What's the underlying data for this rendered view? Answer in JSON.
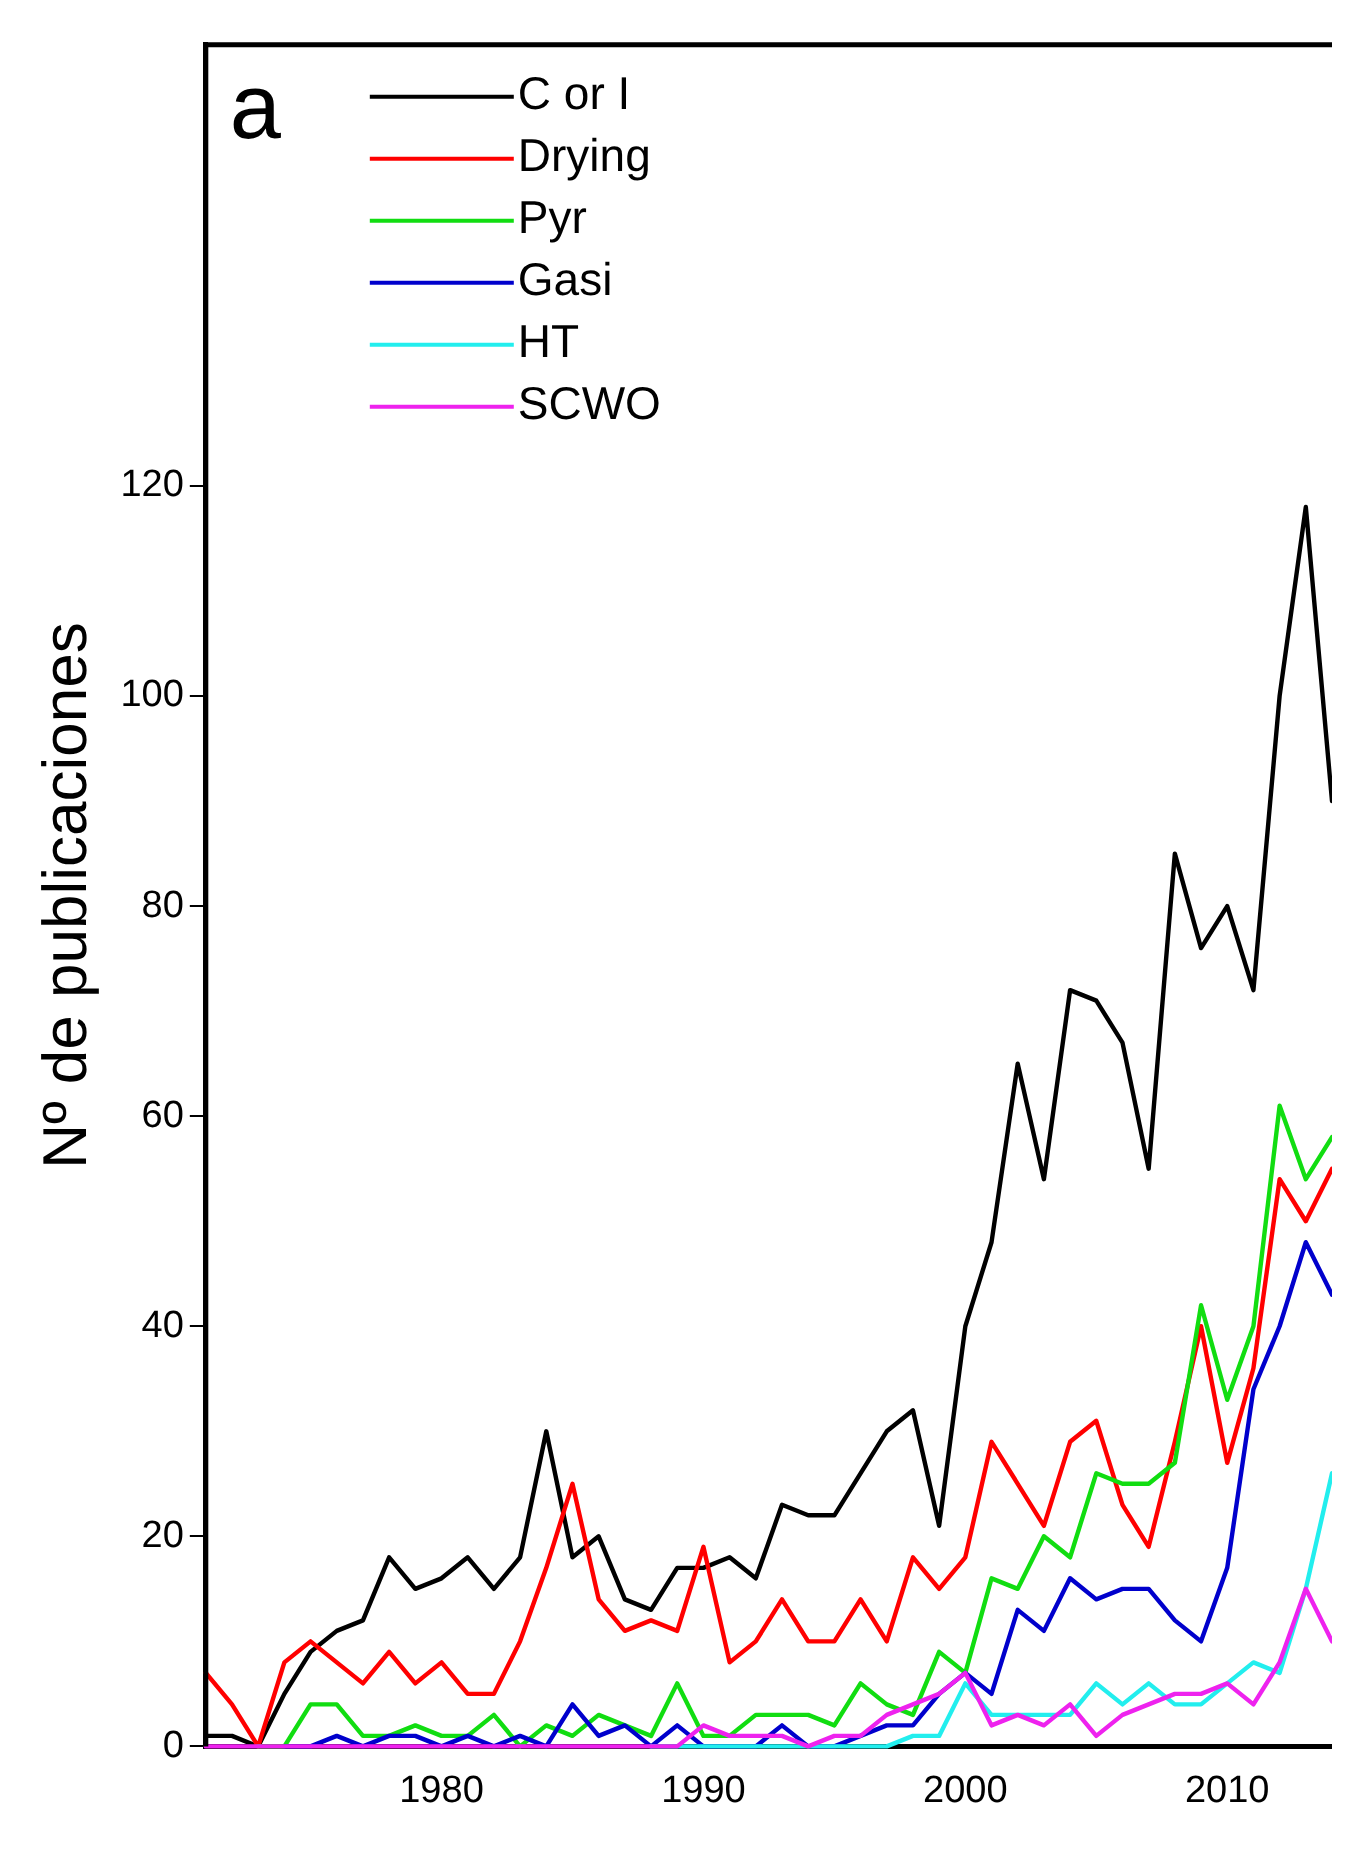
{
  "chart_data": {
    "type": "line",
    "ylabel": "Nº de publicaciones",
    "annotations": [
      "a"
    ],
    "x": [
      1971,
      1972,
      1973,
      1974,
      1975,
      1976,
      1977,
      1978,
      1979,
      1980,
      1981,
      1982,
      1983,
      1984,
      1985,
      1986,
      1987,
      1988,
      1989,
      1990,
      1991,
      1992,
      1993,
      1994,
      1995,
      1996,
      1997,
      1998,
      1999,
      2000,
      2001,
      2002,
      2003,
      2004,
      2005,
      2006,
      2007,
      2008,
      2009,
      2010,
      2011,
      2012,
      2013,
      2014
    ],
    "series": [
      {
        "name": "C or I",
        "color": "#000000",
        "values": [
          1,
          1,
          0,
          5,
          9,
          11,
          12,
          18,
          15,
          16,
          18,
          15,
          18,
          30,
          18,
          20,
          14,
          13,
          17,
          17,
          18,
          16,
          23,
          22,
          22,
          26,
          30,
          32,
          21,
          40,
          48,
          65,
          54,
          72,
          71,
          67,
          55,
          85,
          76,
          80,
          72,
          100,
          118,
          90
        ]
      },
      {
        "name": "Drying",
        "color": "#ff0000",
        "values": [
          7,
          4,
          0,
          8,
          10,
          8,
          6,
          9,
          6,
          8,
          5,
          5,
          10,
          17,
          25,
          14,
          11,
          12,
          11,
          19,
          8,
          10,
          14,
          10,
          10,
          14,
          10,
          18,
          15,
          18,
          29,
          25,
          21,
          29,
          31,
          23,
          19,
          29,
          40,
          27,
          36,
          54,
          50,
          55
        ]
      },
      {
        "name": "Pyr",
        "color": "#11dd11",
        "values": [
          null,
          null,
          0,
          0,
          4,
          4,
          1,
          1,
          2,
          1,
          1,
          3,
          0,
          2,
          1,
          3,
          2,
          1,
          6,
          1,
          1,
          3,
          3,
          3,
          2,
          6,
          4,
          3,
          9,
          7,
          16,
          15,
          20,
          18,
          26,
          25,
          25,
          27,
          42,
          33,
          40,
          61,
          54,
          58
        ]
      },
      {
        "name": "Gasi",
        "color": "#0000cc",
        "values": [
          null,
          null,
          null,
          0,
          0,
          1,
          0,
          1,
          1,
          0,
          1,
          0,
          1,
          0,
          4,
          1,
          2,
          0,
          2,
          0,
          0,
          0,
          2,
          0,
          0,
          1,
          2,
          2,
          5,
          7,
          5,
          13,
          11,
          16,
          14,
          15,
          15,
          12,
          10,
          17,
          34,
          40,
          48,
          43
        ]
      },
      {
        "name": "HT",
        "color": "#22eeee",
        "values": [
          null,
          null,
          null,
          null,
          null,
          null,
          null,
          null,
          null,
          null,
          null,
          null,
          null,
          null,
          null,
          null,
          null,
          0,
          0,
          0,
          0,
          0,
          0,
          0,
          0,
          0,
          0,
          1,
          1,
          6,
          3,
          3,
          3,
          3,
          6,
          4,
          6,
          4,
          4,
          6,
          8,
          7,
          15,
          26
        ]
      },
      {
        "name": "SCWO",
        "color": "#ee22ee",
        "values": [
          0,
          0,
          0,
          0,
          0,
          0,
          0,
          0,
          0,
          0,
          0,
          0,
          0,
          0,
          0,
          0,
          0,
          0,
          0,
          2,
          1,
          1,
          1,
          0,
          1,
          1,
          3,
          4,
          5,
          7,
          2,
          3,
          2,
          4,
          1,
          3,
          4,
          5,
          5,
          6,
          4,
          8,
          15,
          10
        ]
      }
    ],
    "xlim": [
      1971,
      2014
    ],
    "xticks": [
      1980,
      1990,
      2000,
      2010
    ],
    "ylim": [
      0,
      162
    ],
    "yticks": [
      0,
      20,
      40,
      60,
      80,
      100,
      120
    ],
    "grid": false,
    "legend": "top left",
    "marker": "none",
    "line_style": "solid"
  }
}
